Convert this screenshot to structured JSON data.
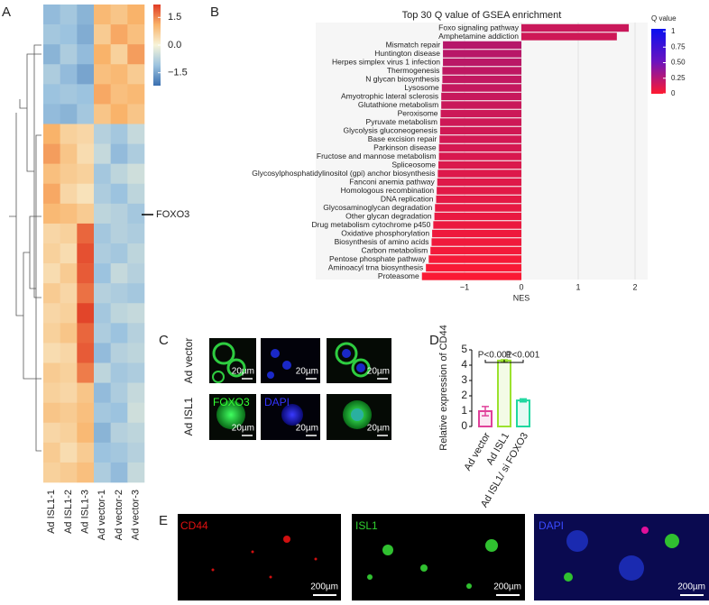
{
  "panel_labels": [
    "A",
    "B",
    "C",
    "D",
    "E"
  ],
  "chart_data": [
    {
      "type": "heatmap",
      "columns": [
        "Ad ISL1-1",
        "Ad ISL1-2",
        "Ad ISL1-3",
        "Ad vector-1",
        "Ad vector-2",
        "Ad vector-3"
      ],
      "values": [
        [
          -1.2,
          -1.0,
          -1.3,
          1.0,
          0.8,
          1.1
        ],
        [
          -1.0,
          -1.1,
          -1.4,
          0.7,
          1.2,
          0.9
        ],
        [
          -1.3,
          -0.9,
          -1.2,
          1.1,
          0.6,
          1.3
        ],
        [
          -0.9,
          -1.2,
          -1.5,
          0.9,
          1.0,
          0.7
        ],
        [
          -1.1,
          -1.0,
          -1.1,
          1.2,
          0.9,
          1.0
        ],
        [
          -1.2,
          -1.3,
          -1.0,
          0.8,
          1.1,
          0.8
        ],
        [
          1.1,
          0.6,
          0.5,
          -0.8,
          -1.0,
          -0.6
        ],
        [
          1.3,
          0.8,
          0.4,
          -0.6,
          -1.2,
          -0.9
        ],
        [
          0.9,
          0.7,
          0.6,
          -1.0,
          -0.7,
          -0.5
        ],
        [
          1.2,
          0.5,
          0.3,
          -0.9,
          -1.1,
          -0.7
        ],
        [
          1.0,
          0.9,
          0.7,
          -0.7,
          -0.8,
          -1.0
        ],
        [
          0.5,
          0.6,
          1.8,
          -1.0,
          -0.8,
          -0.9
        ],
        [
          0.6,
          0.4,
          2.0,
          -0.9,
          -1.0,
          -0.7
        ],
        [
          0.4,
          0.7,
          1.9,
          -1.1,
          -0.6,
          -0.8
        ],
        [
          0.7,
          0.5,
          1.7,
          -0.8,
          -0.9,
          -1.0
        ],
        [
          0.5,
          0.6,
          2.1,
          -1.0,
          -0.7,
          -0.6
        ],
        [
          0.6,
          0.8,
          1.8,
          -0.9,
          -1.1,
          -0.8
        ],
        [
          0.4,
          0.5,
          1.9,
          -1.2,
          -0.8,
          -0.7
        ],
        [
          0.7,
          0.6,
          1.6,
          -0.7,
          -1.0,
          -0.9
        ],
        [
          0.6,
          0.5,
          0.8,
          -1.2,
          -0.9,
          -0.6
        ],
        [
          0.8,
          0.7,
          0.9,
          -1.0,
          -1.1,
          -0.5
        ],
        [
          0.5,
          0.6,
          1.0,
          -1.3,
          -0.8,
          -0.7
        ],
        [
          0.7,
          0.4,
          0.7,
          -1.1,
          -1.0,
          -0.8
        ],
        [
          0.6,
          0.7,
          0.9,
          -0.9,
          -1.2,
          -0.6
        ]
      ],
      "zlim": [
        -2.2,
        2.2
      ],
      "zticks": [
        1.5,
        {
          "value": 0,
          "label": "0.0"
        },
        {
          "value": -1.5,
          "label": "−1.5"
        }
      ],
      "annotation": "FOXO3"
    },
    {
      "type": "hbar",
      "title": "Top 30 Q value of GSEA enrichment",
      "xlabel": "NES",
      "categories": [
        "Foxo signaling pathway",
        "Amphetamine addiction",
        "Mismatch repair",
        "Huntington disease",
        "Herpes simplex virus 1 infection",
        "Thermogenesis",
        "N glycan biosynthesis",
        "Lysosome",
        "Amyotrophic lateral sclerosis",
        "Glutathione metabolism",
        "Peroxisome",
        "Pyruvate metabolism",
        "Glycolysis gluconeogenesis",
        "Base excision repair",
        "Parkinson disease",
        "Fructose and mannose metabolism",
        "Spliceosome",
        "Glycosylphosphatidylinositol (gpi) anchor biosynthesis",
        "Fanconi anemia pathway",
        "Homologous recombination",
        "DNA replication",
        "Glycosaminoglycan degradation",
        "Other glycan degradation",
        "Drug metabolism cytochrome p450",
        "Oxidative phosphorylation",
        "Biosynthesis of amino acids",
        "Carbon metabolism",
        "Pentose phosphate pathway",
        "Aminoacyl trna biosynthesis",
        "Proteasome"
      ],
      "values": [
        1.89,
        1.68,
        -1.38,
        -1.38,
        -1.38,
        -1.39,
        -1.39,
        -1.4,
        -1.41,
        -1.41,
        -1.42,
        -1.43,
        -1.43,
        -1.44,
        -1.45,
        -1.45,
        -1.46,
        -1.47,
        -1.48,
        -1.49,
        -1.5,
        -1.52,
        -1.53,
        -1.55,
        -1.57,
        -1.58,
        -1.6,
        -1.63,
        -1.68,
        -1.75
      ],
      "q_values": [
        0.22,
        0.2,
        0.3,
        0.29,
        0.28,
        0.26,
        0.25,
        0.24,
        0.23,
        0.22,
        0.21,
        0.2,
        0.19,
        0.18,
        0.17,
        0.16,
        0.15,
        0.14,
        0.13,
        0.12,
        0.11,
        0.1,
        0.09,
        0.08,
        0.07,
        0.06,
        0.05,
        0.04,
        0.03,
        0.02
      ],
      "xlim": [
        -1.9,
        2.2
      ],
      "xticks": [
        {
          "value": -1,
          "label": "−1"
        },
        0,
        1,
        2
      ],
      "grid": true,
      "legend_title": "Q value",
      "qlim": [
        0,
        1
      ],
      "qticks": [
        1,
        0.75,
        {
          "value": 0.5,
          "label": "0.50"
        },
        0.25,
        0
      ],
      "qcolors": [
        "#ff1a30",
        "#0a10f0"
      ]
    },
    {
      "type": "bar",
      "ylabel": "Relative expression of CD44",
      "categories": [
        "Ad vector",
        "Ad ISL1",
        "Ad ISL1/ si FOXO3"
      ],
      "values": [
        1.0,
        4.3,
        1.7
      ],
      "errors": [
        0.3,
        0.05,
        0.1
      ],
      "colors": [
        "#e0409a",
        "#9be22e",
        "#1fd8a0"
      ],
      "ylim": [
        0,
        5
      ],
      "yticks": [
        0,
        1,
        2,
        3,
        4,
        5
      ],
      "annotations": [
        "P<0.001",
        "P<0.001"
      ]
    }
  ],
  "images": {
    "C": {
      "rows": [
        "Ad vector",
        "Ad ISL1"
      ],
      "channels": [
        "FOXO3",
        "DAPI"
      ],
      "scale_bars": [
        "20µm",
        "20µm",
        "20µm",
        "20µm",
        "20µm",
        "20µm"
      ]
    },
    "E": {
      "channels": [
        "CD44",
        "ISL1",
        "DAPI"
      ],
      "scale_bars": [
        "200µm",
        "200µm",
        "200µm"
      ]
    }
  }
}
